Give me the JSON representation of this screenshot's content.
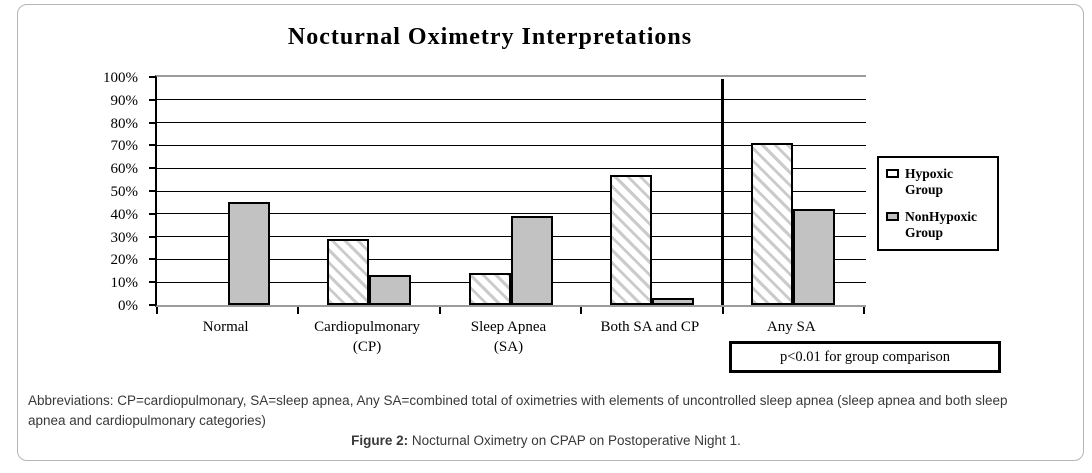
{
  "figure": {
    "title": "Nocturnal Oximetry Interpretations",
    "pvalue_note": "p<0.01 for group comparison",
    "abbreviations_line": "Abbreviations: CP=cardiopulmonary, SA=sleep apnea, Any SA=combined total of oximetries with elements of uncontrolled sleep apnea (sleep apnea and both sleep apnea and cardiopulmonary categories)",
    "caption_label": "Figure 2:",
    "caption_text": " Nocturnal Oximetry on CPAP on Postoperative Night 1."
  },
  "chart_data": {
    "type": "bar",
    "title": "Nocturnal Oximetry Interpretations",
    "categories": [
      {
        "label": "Normal",
        "sublabel": ""
      },
      {
        "label": "Cardiopulmonary",
        "sublabel": "(CP)"
      },
      {
        "label": "Sleep Apnea",
        "sublabel": "(SA)"
      },
      {
        "label": "Both SA and CP",
        "sublabel": ""
      },
      {
        "label": "Any SA",
        "sublabel": ""
      }
    ],
    "series": [
      {
        "name": "Hypoxic Group",
        "fill": "hatch",
        "values": [
          0,
          29,
          14,
          57,
          71
        ]
      },
      {
        "name": "NonHypoxic Group",
        "fill": "solid",
        "values": [
          45,
          13,
          39,
          3,
          42
        ]
      }
    ],
    "unit": "%",
    "ylim": [
      0,
      100
    ],
    "ytick_step": 10,
    "ytick_labels": [
      "0%",
      "10%",
      "20%",
      "30%",
      "40%",
      "50%",
      "60%",
      "70%",
      "80%",
      "90%",
      "100%"
    ],
    "grid": true,
    "legend_position": "right",
    "annotations": {
      "divider_before_category": "Any SA",
      "note": "p<0.01 for group comparison"
    }
  },
  "legend": {
    "items": [
      {
        "label": "Hypoxic Group",
        "swatch": "hatch-white"
      },
      {
        "label": "NonHypoxic Group",
        "swatch": "gray"
      }
    ]
  },
  "colors": {
    "bar_solid": "#c2c2c2",
    "bar_hatch_stripe": "#cbcbcb",
    "bar_border": "#000000",
    "axis_frame": "#9c9c9c",
    "grid_line": "#000000",
    "footnote_text": "#383838",
    "card_border": "#b5b5b5"
  }
}
